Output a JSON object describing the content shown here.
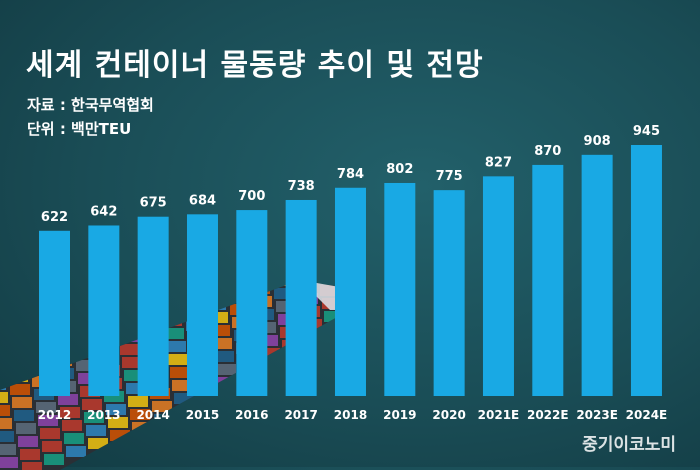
{
  "header": {
    "title": "세계 컨테이너 물동량 추이 및 전망",
    "source": "자료 : 한국무역협회",
    "unit": "단위 : 백만TEU"
  },
  "watermark": "중기이코노미",
  "colors": {
    "bar": "#19a9e4",
    "background": "#1e5760",
    "text": "#ffffff"
  },
  "chart_data": {
    "type": "bar",
    "title": "세계 컨테이너 물동량 추이 및 전망",
    "xlabel": "",
    "ylabel": "",
    "categories": [
      "2012",
      "2013",
      "2014",
      "2015",
      "2016",
      "2017",
      "2018",
      "2019",
      "2020",
      "2021E",
      "2022E",
      "2023E",
      "2024E"
    ],
    "values": [
      622,
      642,
      675,
      684,
      700,
      738,
      784,
      802,
      775,
      827,
      870,
      908,
      945
    ],
    "grid": false,
    "legend": "none"
  }
}
